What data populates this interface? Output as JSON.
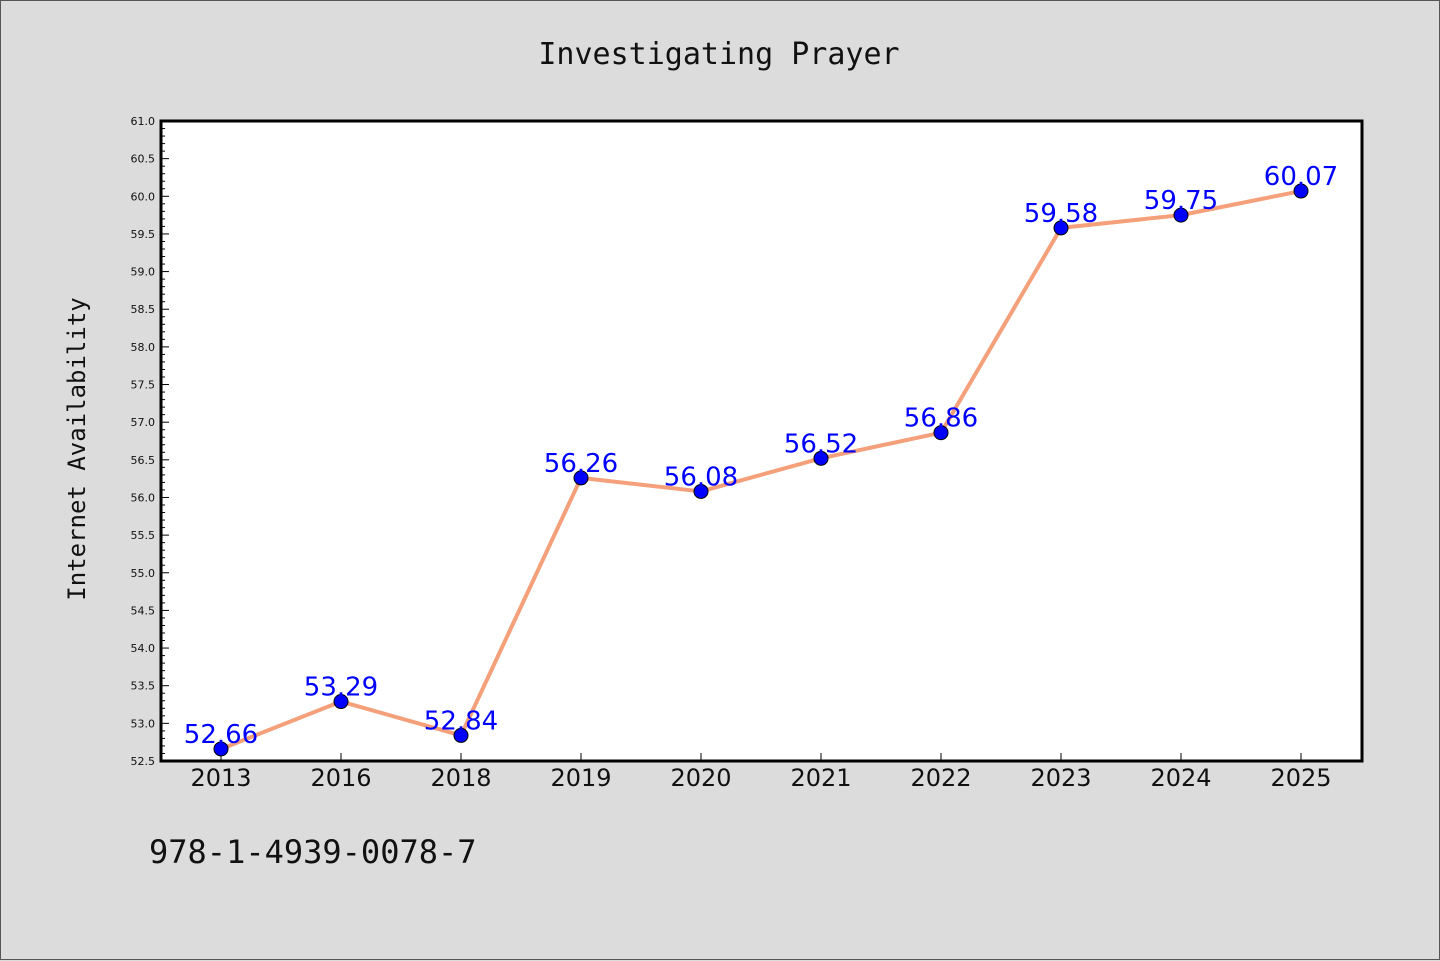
{
  "chart_data": {
    "type": "line",
    "title": "Investigating Prayer",
    "xlabel": "",
    "ylabel": "Internet Availability",
    "categories": [
      "2013",
      "2016",
      "2018",
      "2019",
      "2020",
      "2021",
      "2022",
      "2023",
      "2024",
      "2025"
    ],
    "values": [
      52.66,
      53.29,
      52.84,
      56.26,
      56.08,
      56.52,
      56.86,
      59.58,
      59.75,
      60.07
    ],
    "data_labels": [
      "52.66",
      "53.29",
      "52.84",
      "56.26",
      "56.08",
      "56.52",
      "56.86",
      "59.58",
      "59.75",
      "60.07"
    ],
    "ylim": [
      52.5,
      61.0
    ],
    "yticks": [
      "52.5",
      "53.0",
      "53.5",
      "54.0",
      "54.5",
      "55.0",
      "55.5",
      "56.0",
      "56.5",
      "57.0",
      "57.5",
      "58.0",
      "58.5",
      "59.0",
      "59.5",
      "60.0",
      "60.5",
      "61.0"
    ],
    "grid": false,
    "line_color": "#f4a07a",
    "marker_color": "#0000ff",
    "label_color": "#0000ff"
  },
  "footer": {
    "isbn": "978-1-4939-0078-7"
  }
}
